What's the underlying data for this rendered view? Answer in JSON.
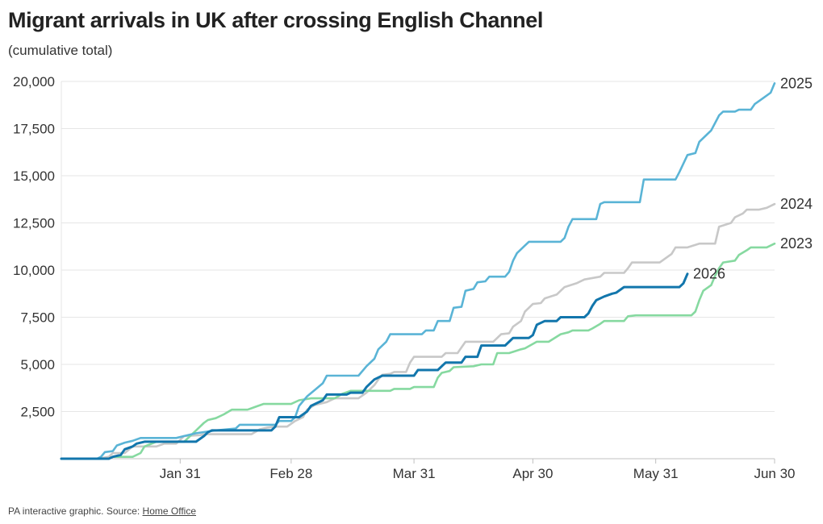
{
  "title": "Migrant arrivals in UK after crossing English Channel",
  "subtitle": "(cumulative total)",
  "footer": {
    "text": "PA interactive graphic. Source: ",
    "link": "Home Office"
  },
  "colors": {
    "2025": "#5ab4d6",
    "2024": "#c8c8c8",
    "2023": "#86d9a0",
    "2026": "#1276ac",
    "grid": "#e6e6e6",
    "axis": "#c0c0c0"
  },
  "chart_data": {
    "type": "line",
    "x_unit": "day of year",
    "ylim": [
      0,
      20000
    ],
    "y_ticks": [
      {
        "value": 2500,
        "label": "2,500"
      },
      {
        "value": 5000,
        "label": "5,000"
      },
      {
        "value": 7500,
        "label": "7,500"
      },
      {
        "value": 10000,
        "label": "10,000"
      },
      {
        "value": 12500,
        "label": "12,500"
      },
      {
        "value": 15000,
        "label": "15,000"
      },
      {
        "value": 17500,
        "label": "17,500"
      },
      {
        "value": 20000,
        "label": "20,000"
      }
    ],
    "x_ticks": [
      {
        "day": 31,
        "label": "Jan 31"
      },
      {
        "day": 59,
        "label": "Feb 28"
      },
      {
        "day": 90,
        "label": "Mar 31"
      },
      {
        "day": 120,
        "label": "Apr 30"
      },
      {
        "day": 151,
        "label": "May 31"
      },
      {
        "day": 181,
        "label": "Jun 30"
      }
    ],
    "xlim": [
      1,
      181
    ],
    "grid": true,
    "series": [
      {
        "name": "2024",
        "points": [
          [
            1,
            0
          ],
          [
            10,
            0
          ],
          [
            13,
            100
          ],
          [
            14,
            300
          ],
          [
            17,
            300
          ],
          [
            19,
            650
          ],
          [
            25,
            650
          ],
          [
            27,
            800
          ],
          [
            30,
            800
          ],
          [
            32,
            1200
          ],
          [
            36,
            1250
          ],
          [
            37,
            1300
          ],
          [
            49,
            1300
          ],
          [
            51,
            1550
          ],
          [
            53,
            1650
          ],
          [
            55,
            1700
          ],
          [
            58,
            1700
          ],
          [
            60,
            2000
          ],
          [
            62,
            2200
          ],
          [
            63,
            2600
          ],
          [
            65,
            2850
          ],
          [
            68,
            3000
          ],
          [
            70,
            3200
          ],
          [
            76,
            3200
          ],
          [
            78,
            3500
          ],
          [
            80,
            3900
          ],
          [
            81,
            4200
          ],
          [
            82,
            4450
          ],
          [
            84,
            4500
          ],
          [
            85,
            4600
          ],
          [
            88,
            4600
          ],
          [
            89,
            5100
          ],
          [
            90,
            5400
          ],
          [
            97,
            5400
          ],
          [
            98,
            5600
          ],
          [
            101,
            5600
          ],
          [
            102,
            5900
          ],
          [
            103,
            6200
          ],
          [
            110,
            6200
          ],
          [
            112,
            6600
          ],
          [
            114,
            6650
          ],
          [
            115,
            7000
          ],
          [
            117,
            7300
          ],
          [
            118,
            7800
          ],
          [
            120,
            8200
          ],
          [
            122,
            8250
          ],
          [
            123,
            8500
          ],
          [
            126,
            8700
          ],
          [
            128,
            9100
          ],
          [
            131,
            9300
          ],
          [
            133,
            9500
          ],
          [
            137,
            9650
          ],
          [
            138,
            9850
          ],
          [
            143,
            9850
          ],
          [
            144,
            10100
          ],
          [
            145,
            10400
          ],
          [
            152,
            10400
          ],
          [
            154,
            10700
          ],
          [
            155,
            10850
          ],
          [
            156,
            11200
          ],
          [
            159,
            11200
          ],
          [
            162,
            11400
          ],
          [
            166,
            11400
          ],
          [
            167,
            12300
          ],
          [
            170,
            12500
          ],
          [
            171,
            12800
          ],
          [
            173,
            13000
          ],
          [
            174,
            13200
          ],
          [
            177,
            13200
          ],
          [
            179,
            13300
          ],
          [
            181,
            13500
          ]
        ]
      },
      {
        "name": "2023",
        "points": [
          [
            1,
            0
          ],
          [
            13,
            0
          ],
          [
            14,
            100
          ],
          [
            19,
            100
          ],
          [
            21,
            300
          ],
          [
            22,
            650
          ],
          [
            25,
            900
          ],
          [
            32,
            900
          ],
          [
            35,
            1500
          ],
          [
            37,
            1900
          ],
          [
            38,
            2050
          ],
          [
            40,
            2150
          ],
          [
            42,
            2350
          ],
          [
            44,
            2600
          ],
          [
            48,
            2600
          ],
          [
            50,
            2750
          ],
          [
            52,
            2900
          ],
          [
            59,
            2900
          ],
          [
            61,
            3100
          ],
          [
            64,
            3200
          ],
          [
            70,
            3200
          ],
          [
            72,
            3450
          ],
          [
            74,
            3600
          ],
          [
            84,
            3600
          ],
          [
            85,
            3700
          ],
          [
            89,
            3700
          ],
          [
            90,
            3800
          ],
          [
            95,
            3800
          ],
          [
            96,
            4300
          ],
          [
            97,
            4550
          ],
          [
            99,
            4650
          ],
          [
            100,
            4850
          ],
          [
            105,
            4900
          ],
          [
            107,
            5000
          ],
          [
            110,
            5000
          ],
          [
            111,
            5600
          ],
          [
            114,
            5600
          ],
          [
            117,
            5800
          ],
          [
            118,
            5850
          ],
          [
            121,
            6200
          ],
          [
            124,
            6200
          ],
          [
            127,
            6600
          ],
          [
            129,
            6700
          ],
          [
            130,
            6800
          ],
          [
            134,
            6800
          ],
          [
            135,
            6900
          ],
          [
            137,
            7150
          ],
          [
            138,
            7300
          ],
          [
            143,
            7300
          ],
          [
            144,
            7550
          ],
          [
            146,
            7600
          ],
          [
            160,
            7600
          ],
          [
            161,
            7800
          ],
          [
            162,
            8400
          ],
          [
            163,
            8900
          ],
          [
            165,
            9200
          ],
          [
            166,
            9700
          ],
          [
            167,
            10100
          ],
          [
            168,
            10400
          ],
          [
            171,
            10500
          ],
          [
            172,
            10800
          ],
          [
            174,
            11050
          ],
          [
            175,
            11200
          ],
          [
            179,
            11200
          ],
          [
            181,
            11400
          ]
        ]
      },
      {
        "name": "2025",
        "points": [
          [
            1,
            0
          ],
          [
            10,
            0
          ],
          [
            11,
            100
          ],
          [
            12,
            350
          ],
          [
            14,
            400
          ],
          [
            15,
            700
          ],
          [
            17,
            850
          ],
          [
            19,
            950
          ],
          [
            21,
            1100
          ],
          [
            30,
            1100
          ],
          [
            32,
            1200
          ],
          [
            35,
            1350
          ],
          [
            40,
            1500
          ],
          [
            45,
            1600
          ],
          [
            46,
            1800
          ],
          [
            55,
            1800
          ],
          [
            56,
            2000
          ],
          [
            59,
            2000
          ],
          [
            60,
            2200
          ],
          [
            61,
            2800
          ],
          [
            63,
            3300
          ],
          [
            65,
            3650
          ],
          [
            67,
            4000
          ],
          [
            68,
            4400
          ],
          [
            76,
            4400
          ],
          [
            78,
            4900
          ],
          [
            80,
            5300
          ],
          [
            81,
            5800
          ],
          [
            83,
            6200
          ],
          [
            84,
            6600
          ],
          [
            92,
            6600
          ],
          [
            93,
            6800
          ],
          [
            95,
            6800
          ],
          [
            96,
            7300
          ],
          [
            99,
            7300
          ],
          [
            100,
            8000
          ],
          [
            102,
            8050
          ],
          [
            103,
            8900
          ],
          [
            105,
            9000
          ],
          [
            106,
            9350
          ],
          [
            108,
            9400
          ],
          [
            109,
            9650
          ],
          [
            113,
            9650
          ],
          [
            114,
            9900
          ],
          [
            115,
            10500
          ],
          [
            116,
            10900
          ],
          [
            118,
            11300
          ],
          [
            119,
            11500
          ],
          [
            127,
            11500
          ],
          [
            128,
            11700
          ],
          [
            129,
            12300
          ],
          [
            130,
            12700
          ],
          [
            136,
            12700
          ],
          [
            137,
            13500
          ],
          [
            138,
            13600
          ],
          [
            147,
            13600
          ],
          [
            148,
            14800
          ],
          [
            156,
            14800
          ],
          [
            157,
            15200
          ],
          [
            159,
            16100
          ],
          [
            161,
            16200
          ],
          [
            162,
            16800
          ],
          [
            164,
            17200
          ],
          [
            165,
            17400
          ],
          [
            167,
            18200
          ],
          [
            168,
            18400
          ],
          [
            171,
            18400
          ],
          [
            172,
            18500
          ],
          [
            175,
            18500
          ],
          [
            176,
            18800
          ],
          [
            178,
            19100
          ],
          [
            180,
            19400
          ],
          [
            181,
            19900
          ]
        ]
      },
      {
        "name": "2026",
        "points": [
          [
            1,
            0
          ],
          [
            13,
            0
          ],
          [
            14,
            100
          ],
          [
            16,
            200
          ],
          [
            17,
            500
          ],
          [
            19,
            650
          ],
          [
            20,
            800
          ],
          [
            22,
            900
          ],
          [
            35,
            900
          ],
          [
            37,
            1200
          ],
          [
            38,
            1400
          ],
          [
            39,
            1500
          ],
          [
            54,
            1500
          ],
          [
            55,
            1700
          ],
          [
            56,
            2200
          ],
          [
            61,
            2200
          ],
          [
            63,
            2500
          ],
          [
            64,
            2800
          ],
          [
            67,
            3100
          ],
          [
            68,
            3400
          ],
          [
            73,
            3400
          ],
          [
            74,
            3500
          ],
          [
            77,
            3500
          ],
          [
            78,
            3800
          ],
          [
            80,
            4200
          ],
          [
            82,
            4400
          ],
          [
            90,
            4400
          ],
          [
            91,
            4700
          ],
          [
            96,
            4700
          ],
          [
            97,
            4900
          ],
          [
            98,
            5100
          ],
          [
            102,
            5100
          ],
          [
            103,
            5400
          ],
          [
            106,
            5400
          ],
          [
            107,
            6000
          ],
          [
            113,
            6000
          ],
          [
            114,
            6200
          ],
          [
            115,
            6400
          ],
          [
            119,
            6400
          ],
          [
            120,
            6550
          ],
          [
            121,
            7100
          ],
          [
            123,
            7300
          ],
          [
            126,
            7300
          ],
          [
            127,
            7500
          ],
          [
            133,
            7500
          ],
          [
            134,
            7700
          ],
          [
            135,
            8100
          ],
          [
            136,
            8400
          ],
          [
            138,
            8600
          ],
          [
            140,
            8750
          ],
          [
            141,
            8800
          ],
          [
            143,
            9100
          ],
          [
            157,
            9100
          ],
          [
            158,
            9300
          ],
          [
            159,
            9800
          ]
        ]
      }
    ],
    "series_labels": [
      {
        "name": "2025",
        "label": "2025"
      },
      {
        "name": "2024",
        "label": "2024"
      },
      {
        "name": "2023",
        "label": "2023"
      },
      {
        "name": "2026",
        "label": "2026"
      }
    ]
  }
}
